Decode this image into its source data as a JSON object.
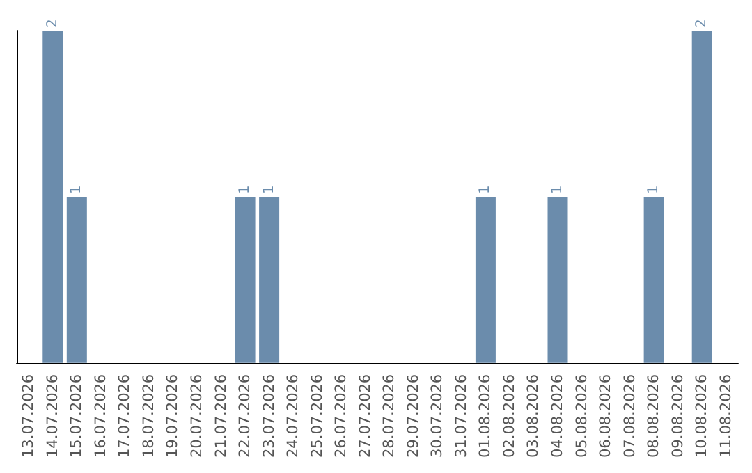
{
  "chart_data": {
    "type": "bar",
    "categories": [
      "13.07.2026",
      "14.07.2026",
      "15.07.2026",
      "16.07.2026",
      "17.07.2026",
      "18.07.2026",
      "19.07.2026",
      "20.07.2026",
      "21.07.2026",
      "22.07.2026",
      "23.07.2026",
      "24.07.2026",
      "25.07.2026",
      "26.07.2026",
      "27.07.2026",
      "28.07.2026",
      "29.07.2026",
      "30.07.2026",
      "31.07.2026",
      "01.08.2026",
      "02.08.2026",
      "03.08.2026",
      "04.08.2026",
      "05.08.2026",
      "06.08.2026",
      "07.08.2026",
      "08.08.2026",
      "09.08.2026",
      "10.08.2026",
      "11.08.2026"
    ],
    "values": [
      0,
      2,
      1,
      0,
      0,
      0,
      0,
      0,
      0,
      1,
      1,
      0,
      0,
      0,
      0,
      0,
      0,
      0,
      0,
      1,
      0,
      0,
      1,
      0,
      0,
      0,
      1,
      0,
      2,
      0
    ],
    "value_labels": [
      null,
      "2",
      "1",
      null,
      null,
      null,
      null,
      null,
      null,
      "1",
      "1",
      null,
      null,
      null,
      null,
      null,
      null,
      null,
      null,
      "1",
      null,
      null,
      "1",
      null,
      null,
      null,
      "1",
      null,
      "2",
      null
    ],
    "color": "#6b8cac",
    "grid": false,
    "tick_labels": "x"
  }
}
